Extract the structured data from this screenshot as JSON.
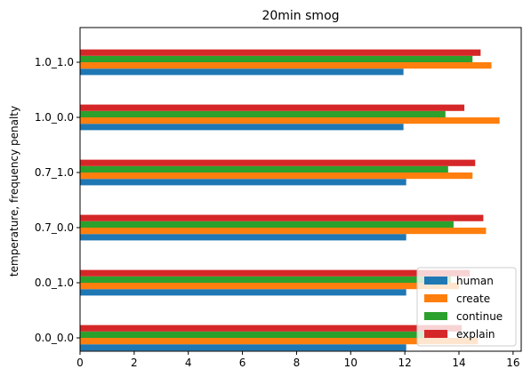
{
  "chart_data": {
    "type": "bar",
    "orientation": "horizontal",
    "title": "20min smog",
    "xlabel": "",
    "ylabel": "temperature, frequency penalty",
    "xlim": [
      0,
      16.3
    ],
    "xticks": [
      0,
      2,
      4,
      6,
      8,
      10,
      12,
      14,
      16
    ],
    "categories": [
      "0.0_0.0",
      "0.0_1.0",
      "0.7_0.0",
      "0.7_1.0",
      "1.0_0.0",
      "1.0_1.0"
    ],
    "series": [
      {
        "name": "human",
        "color": "#1f77b4",
        "values": [
          12.05,
          12.05,
          12.05,
          12.05,
          11.95,
          11.95
        ]
      },
      {
        "name": "create",
        "color": "#ff7f0e",
        "values": [
          14.7,
          14.0,
          15.0,
          14.5,
          15.5,
          15.2
        ]
      },
      {
        "name": "continue",
        "color": "#2ca02c",
        "values": [
          13.6,
          13.7,
          13.8,
          13.6,
          13.5,
          14.5
        ]
      },
      {
        "name": "explain",
        "color": "#d62728",
        "values": [
          14.1,
          14.4,
          14.9,
          14.6,
          14.2,
          14.8
        ]
      }
    ],
    "legend": "lower-right",
    "grid": false
  }
}
